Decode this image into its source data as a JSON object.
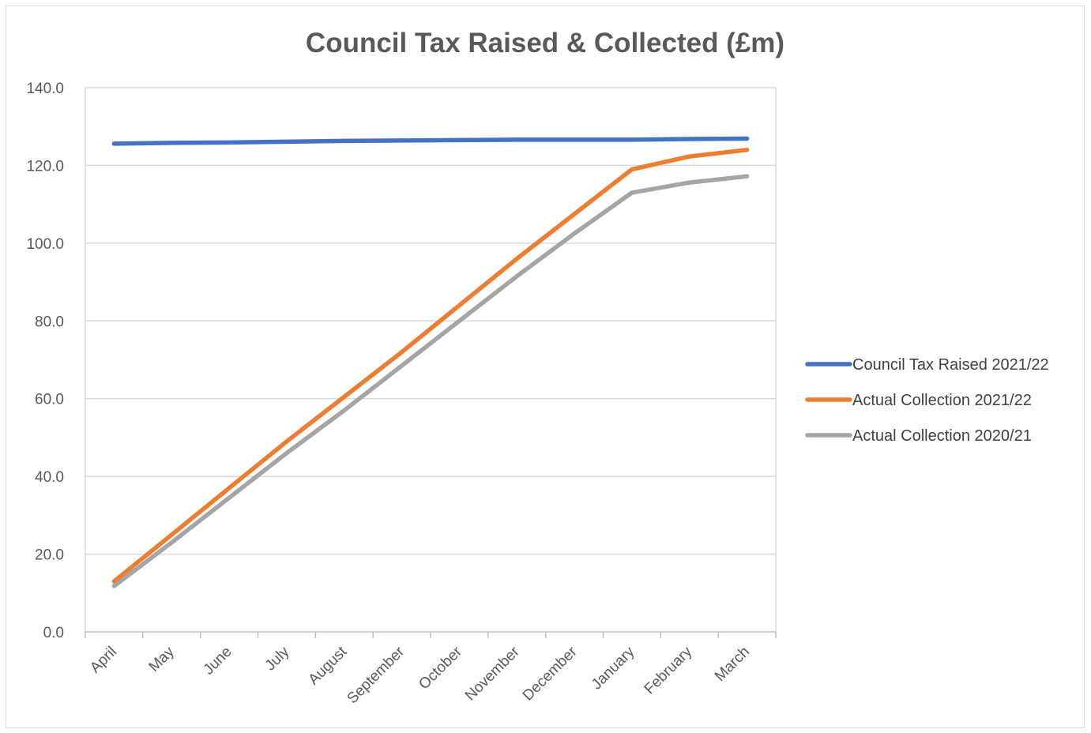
{
  "chart_data": {
    "type": "line",
    "title": "Council Tax Raised & Collected (£m)",
    "xlabel": "",
    "ylabel": "",
    "categories": [
      "April",
      "May",
      "June",
      "July",
      "August",
      "September",
      "October",
      "November",
      "December",
      "January",
      "February",
      "March"
    ],
    "ylim": [
      0,
      140
    ],
    "yticks": [
      "0.0",
      "20.0",
      "40.0",
      "60.0",
      "80.0",
      "100.0",
      "120.0",
      "140.0"
    ],
    "grid": true,
    "legend_position": "right",
    "series": [
      {
        "name": "Council Tax Raised 2021/22",
        "color": "#4472c4",
        "values": [
          125.6,
          125.8,
          125.9,
          126.1,
          126.3,
          126.4,
          126.5,
          126.6,
          126.6,
          126.6,
          126.8,
          126.9
        ]
      },
      {
        "name": "Actual Collection 2021/22",
        "color": "#ed7d31",
        "values": [
          13.0,
          25.0,
          37.0,
          49.0,
          60.5,
          72.0,
          84.0,
          96.0,
          107.5,
          119.0,
          122.3,
          124.0
        ]
      },
      {
        "name": "Actual Collection 2020/21",
        "color": "#a5a5a5",
        "values": [
          11.8,
          23.0,
          34.5,
          46.0,
          57.0,
          68.5,
          80.0,
          91.5,
          102.5,
          113.0,
          115.6,
          117.2
        ]
      }
    ]
  }
}
